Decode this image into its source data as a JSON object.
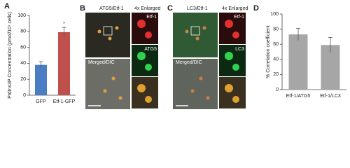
{
  "panel_labels": [
    "A",
    "B",
    "C",
    "D"
  ],
  "chart_data": [
    {
      "type": "bar",
      "ylabel": "PtdIns3P Concentration (pmol/10⁷ cells)",
      "categories": [
        "GFP",
        "Etf-1-GFP"
      ],
      "values": [
        38,
        79
      ],
      "errors": [
        4,
        6
      ],
      "colors": [
        "#4a7dc4",
        "#c0504d"
      ],
      "annotation": "*",
      "ylim": [
        0,
        100
      ],
      "yticks": [
        0,
        20,
        40,
        60,
        80,
        100
      ]
    },
    {
      "type": "bar",
      "ylabel": "% Correlation coefficient",
      "categories": [
        "Etf-1/ATG5",
        "Etf-1/LC3"
      ],
      "values": [
        73,
        59
      ],
      "errors": [
        8,
        10
      ],
      "colors": [
        "#a6a6a6",
        "#a6a6a6"
      ],
      "ylim": [
        0,
        100
      ],
      "yticks": [
        0,
        20,
        40,
        60,
        80,
        100
      ]
    }
  ],
  "micrographs": [
    {
      "title": "ATG5/Etf-1",
      "enlarged": "4x Enlarged",
      "channels": [
        "Etf-1",
        "ATG5"
      ],
      "merged": "Merged/DIC"
    },
    {
      "title": "LC3/Etf-1",
      "enlarged": "4x Enlarged",
      "channels": [
        "Etf-1",
        "LC3"
      ],
      "merged": "Merged/DIC"
    }
  ]
}
